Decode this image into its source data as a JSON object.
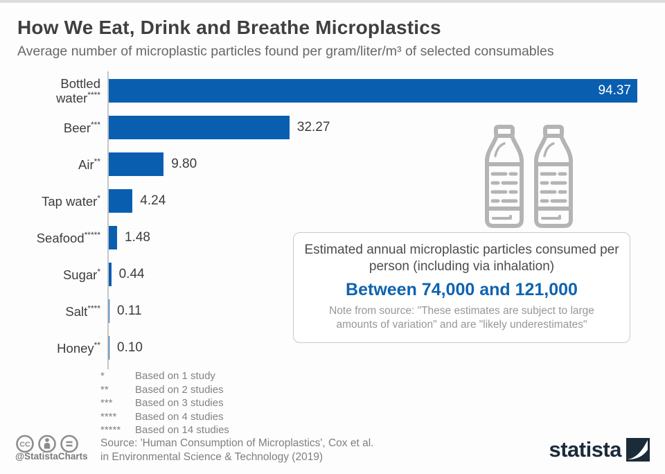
{
  "header": {
    "title": "How We Eat, Drink and Breathe Microplastics",
    "subtitle": "Average number of microplastic particles found per gram/liter/m³ of selected consumables"
  },
  "chart_data": {
    "type": "bar",
    "orientation": "horizontal",
    "title": "How We Eat, Drink and Breathe Microplastics",
    "xlabel": "Average number of microplastic particles found per gram/liter/m³",
    "categories": [
      "Bottled water****",
      "Beer***",
      "Air**",
      "Tap water*",
      "Seafood*****",
      "Sugar*",
      "Salt****",
      "Honey**"
    ],
    "values": [
      94.37,
      32.27,
      9.8,
      4.24,
      1.48,
      0.44,
      0.11,
      0.1
    ],
    "xlim": [
      0,
      94.37
    ],
    "grid": false,
    "legend": false,
    "rows": [
      {
        "label": "Bottled water",
        "stars": "****",
        "value": 94.37,
        "display": "94.37",
        "value_inside": true
      },
      {
        "label": "Beer",
        "stars": "***",
        "value": 32.27,
        "display": "32.27",
        "value_inside": false
      },
      {
        "label": "Air",
        "stars": "**",
        "value": 9.8,
        "display": "9.80",
        "value_inside": false
      },
      {
        "label": "Tap water",
        "stars": "*",
        "value": 4.24,
        "display": "4.24",
        "value_inside": false
      },
      {
        "label": "Seafood",
        "stars": "*****",
        "value": 1.48,
        "display": "1.48",
        "value_inside": false
      },
      {
        "label": "Sugar",
        "stars": "*",
        "value": 0.44,
        "display": "0.44",
        "value_inside": false
      },
      {
        "label": "Salt",
        "stars": "****",
        "value": 0.11,
        "display": "0.11",
        "value_inside": false
      },
      {
        "label": "Honey",
        "stars": "**",
        "value": 0.1,
        "display": "0.10",
        "value_inside": false
      }
    ]
  },
  "callout": {
    "heading": "Estimated annual microplastic particles consumed per person (including via inhalation)",
    "highlight": "Between 74,000 and 121,000",
    "note": "Note from source: \"These estimates are subject to large amounts of variation\" and are \"likely underestimates\""
  },
  "footnotes": [
    {
      "stars": "*",
      "text": "Based on 1 study"
    },
    {
      "stars": "**",
      "text": "Based on 2 studies"
    },
    {
      "stars": "***",
      "text": "Based on 3 studies"
    },
    {
      "stars": "****",
      "text": "Based on 4 studies"
    },
    {
      "stars": "*****",
      "text": "Based on 14 studies"
    }
  ],
  "source": {
    "line1": "Source: 'Human Consumption of Microplastics', Cox et al.",
    "line2": "in Environmental Science & Technology (2019)"
  },
  "branding": {
    "handle": "@StatistaCharts",
    "logo_text": "statista",
    "license_icons": [
      "cc-icon",
      "attribution-icon",
      "equal-icon"
    ]
  },
  "colors": {
    "bar": "#0a5eb0",
    "highlight": "#0e63b0",
    "logo": "#1b2b3a",
    "bottle_icon": "#b4b4b4",
    "license_icon": "#8c8c8c"
  }
}
